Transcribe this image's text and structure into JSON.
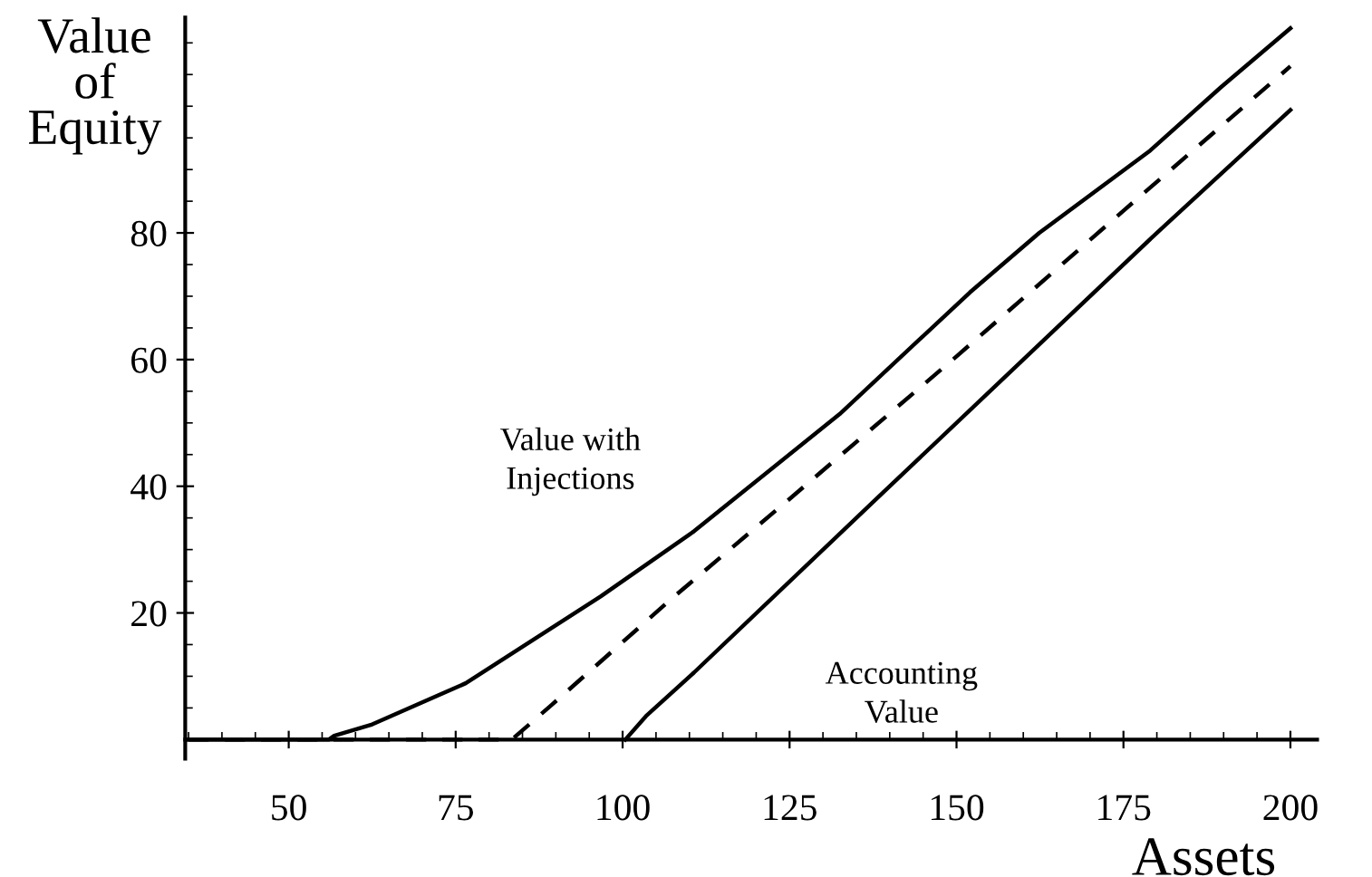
{
  "chart_data": {
    "type": "line",
    "xlabel": "Assets",
    "ylabel": "Value\nof\nEquity",
    "xlim": [
      34.5,
      204
    ],
    "ylim": [
      -3,
      114
    ],
    "xticks": [
      50,
      75,
      100,
      125,
      150,
      175,
      200
    ],
    "yticks": [
      20,
      40,
      60,
      80
    ],
    "grid": false,
    "legend": false,
    "series": [
      {
        "name": "Value with\nInjections",
        "color": "#000000",
        "line_style": "solid",
        "x": [
          35,
          56,
          56.8,
          62.5,
          76.5,
          96.7,
          110.7,
          132.5,
          152,
          162.4,
          179,
          189.6,
          200
        ],
        "values": [
          0,
          0,
          0.6,
          2.4,
          8.9,
          22.6,
          32.9,
          51.4,
          70.6,
          80,
          93,
          103,
          112.3
        ]
      },
      {
        "color": "#000000",
        "line_style": "dashed",
        "x": [
          35,
          83.4,
          89.4,
          107.4,
          125,
          150,
          175,
          200
        ],
        "values": [
          0,
          0,
          5.5,
          22.3,
          38,
          60.5,
          83.5,
          106.3
        ]
      },
      {
        "name": "Accounting\nValue",
        "color": "#000000",
        "line_style": "solid",
        "x": [
          100.4,
          103.5,
          110.7,
          138,
          160,
          180,
          200
        ],
        "values": [
          0,
          3.7,
          10.6,
          38,
          60,
          80,
          99.4
        ]
      }
    ]
  }
}
